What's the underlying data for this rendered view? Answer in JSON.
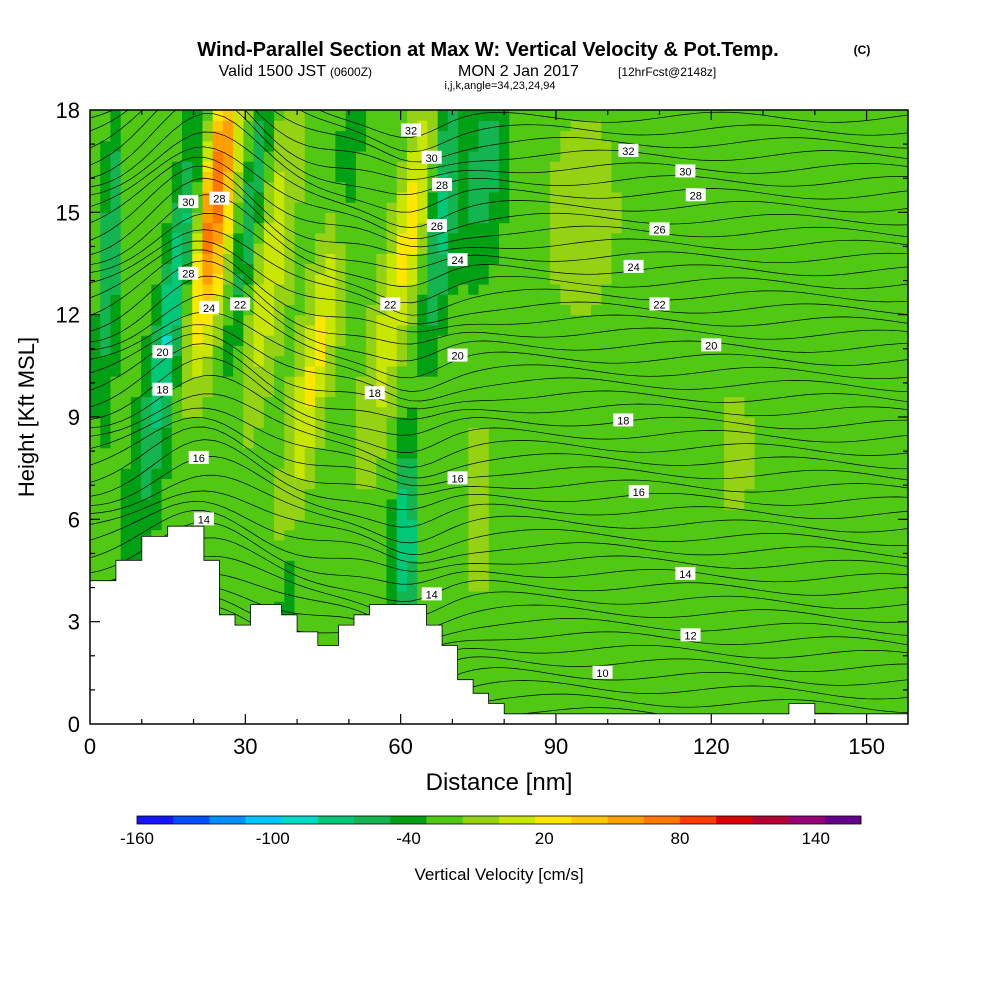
{
  "title": {
    "main": "Wind-Parallel Section at Max W: Vertical Velocity & Pot.Temp.",
    "copyright": "(C)",
    "valid_prefix": "Valid 1500 JST",
    "utc": "(0600Z)",
    "date": "MON 2 Jan 2017",
    "forecast": "[12hrFcst@2148z]",
    "params": "i,j,k,angle=34,23,24,94"
  },
  "chart_data": {
    "type": "heatmap",
    "xlabel": "Distance [nm]",
    "ylabel": "Height [Kft MSL]",
    "xlim": [
      0,
      158
    ],
    "ylim": [
      0,
      18
    ],
    "x_ticks": [
      0,
      30,
      60,
      90,
      120,
      150
    ],
    "y_ticks": [
      0,
      3,
      6,
      9,
      12,
      15,
      18
    ],
    "colorbar": {
      "label": "Vertical Velocity [cm/s]",
      "min": -160,
      "max": 160,
      "step": 20,
      "tick_labels": [
        -160,
        -100,
        -40,
        20,
        80,
        140
      ],
      "colors": [
        "#1414ff",
        "#0050ff",
        "#0090ff",
        "#00c8ff",
        "#00dcc8",
        "#00c878",
        "#14b450",
        "#00a014",
        "#50c814",
        "#96d214",
        "#c8e600",
        "#ffe600",
        "#ffc800",
        "#ffa000",
        "#ff7800",
        "#ff3c00",
        "#dc0000",
        "#b40032",
        "#960078",
        "#64008c"
      ]
    },
    "terrain": [
      [
        0,
        4.2
      ],
      [
        5,
        4.2
      ],
      [
        5,
        4.8
      ],
      [
        10,
        4.8
      ],
      [
        10,
        5.5
      ],
      [
        15,
        5.5
      ],
      [
        15,
        5.8
      ],
      [
        22,
        5.8
      ],
      [
        22,
        4.8
      ],
      [
        25,
        4.8
      ],
      [
        25,
        3.2
      ],
      [
        28,
        3.2
      ],
      [
        28,
        2.9
      ],
      [
        31,
        2.9
      ],
      [
        31,
        3.5
      ],
      [
        37,
        3.5
      ],
      [
        37,
        3.2
      ],
      [
        40,
        3.2
      ],
      [
        40,
        2.7
      ],
      [
        44,
        2.7
      ],
      [
        44,
        2.3
      ],
      [
        48,
        2.3
      ],
      [
        48,
        2.9
      ],
      [
        51,
        2.9
      ],
      [
        51,
        3.2
      ],
      [
        54,
        3.2
      ],
      [
        54,
        3.5
      ],
      [
        65,
        3.5
      ],
      [
        65,
        2.9
      ],
      [
        68,
        2.9
      ],
      [
        68,
        2.3
      ],
      [
        71,
        2.3
      ],
      [
        71,
        1.3
      ],
      [
        74,
        1.3
      ],
      [
        74,
        0.9
      ],
      [
        77,
        0.9
      ],
      [
        77,
        0.6
      ],
      [
        80,
        0.6
      ],
      [
        80,
        0.3
      ],
      [
        135,
        0.3
      ],
      [
        135,
        0.6
      ],
      [
        140,
        0.6
      ],
      [
        140,
        0.3
      ],
      [
        158,
        0.3
      ]
    ],
    "updrafts": [
      {
        "x": 24,
        "y": 15.5,
        "sx": 3.5,
        "sy": 4.5,
        "tilt": 0.25,
        "w": 130
      },
      {
        "x": 35,
        "y": 13.5,
        "sx": 3,
        "sy": 5,
        "tilt": 0.3,
        "w": 40
      },
      {
        "x": 44,
        "y": 11,
        "sx": 3,
        "sy": 6,
        "tilt": 0.4,
        "w": 50
      },
      {
        "x": 63,
        "y": 15.5,
        "sx": 3,
        "sy": 3.5,
        "tilt": 0.3,
        "w": 55
      },
      {
        "x": 57,
        "y": 11,
        "sx": 3,
        "sy": 4,
        "tilt": 0.3,
        "w": 30
      },
      {
        "x": 75,
        "y": 6,
        "sx": 2,
        "sy": 2.5,
        "tilt": 0,
        "w": 35
      },
      {
        "x": 95,
        "y": 15,
        "sx": 8,
        "sy": 3,
        "tilt": 0,
        "w": 25
      },
      {
        "x": 125,
        "y": 8.5,
        "sx": 5,
        "sy": 3,
        "tilt": 0,
        "w": 15
      },
      {
        "x": 150,
        "y": 12,
        "sx": 6,
        "sy": 4,
        "tilt": 0,
        "w": 12
      }
    ],
    "downdrafts": [
      {
        "x": 17,
        "y": 13,
        "sx": 3,
        "sy": 6,
        "tilt": 0.35,
        "w": -80
      },
      {
        "x": 4,
        "y": 14,
        "sx": 2,
        "sy": 4,
        "tilt": 0.1,
        "w": -55
      },
      {
        "x": 31,
        "y": 15,
        "sx": 2,
        "sy": 4,
        "tilt": 0.3,
        "w": -55
      },
      {
        "x": 50,
        "y": 16,
        "sx": 2.5,
        "sy": 3,
        "tilt": 0.2,
        "w": -45
      },
      {
        "x": 68,
        "y": 15,
        "sx": 2.5,
        "sy": 4,
        "tilt": 0.2,
        "w": -60
      },
      {
        "x": 61,
        "y": 5.5,
        "sx": 2,
        "sy": 3,
        "tilt": 0,
        "w": -70
      },
      {
        "x": 38,
        "y": 3.5,
        "sx": 2,
        "sy": 2,
        "tilt": 0,
        "w": -30
      },
      {
        "x": 76,
        "y": 16,
        "sx": 4,
        "sy": 3,
        "tilt": 0.2,
        "w": -35
      }
    ],
    "theta_contour_labels": [
      "32",
      "30",
      "28",
      "26",
      "24",
      "22",
      "20",
      "18",
      "16",
      "14",
      "12",
      "10"
    ],
    "contour_levels": [
      10,
      12,
      14,
      16,
      18,
      20,
      22,
      24,
      26,
      28,
      30,
      32
    ]
  }
}
